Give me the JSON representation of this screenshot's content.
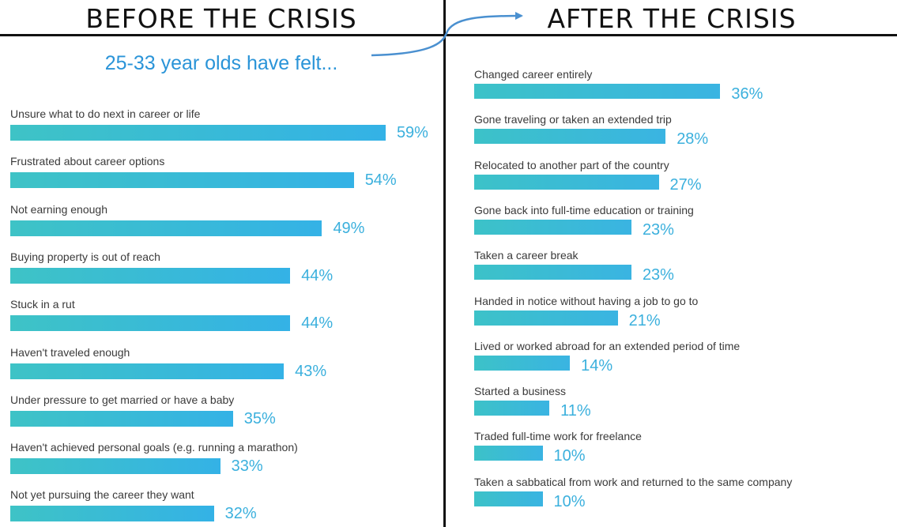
{
  "header": {
    "left_title": "BEFORE THE CRISIS",
    "right_title": "AFTER THE CRISIS"
  },
  "colors": {
    "bar_left_start": "#3ec3c6",
    "bar_left_end": "#34b2e6",
    "bar_right_start": "#3cc2c8",
    "bar_right_end": "#3ab4e2",
    "value_text": "#3bb0dd",
    "arrow": "#4a90d0"
  },
  "chart_data": [
    {
      "type": "bar",
      "orientation": "horizontal",
      "title": "25-33 year olds have felt...",
      "categories": [
        "Unsure what to do next in career or life",
        "Frustrated about career options",
        "Not earning enough",
        "Buying property is out of reach",
        "Stuck in a rut",
        "Haven't traveled enough",
        "Under pressure to get married or have a baby",
        "Haven't achieved personal goals (e.g. running a marathon)",
        "Not yet pursuing the career they want"
      ],
      "values": [
        59,
        54,
        49,
        44,
        44,
        43,
        35,
        33,
        32
      ],
      "value_labels": [
        "59%",
        "54%",
        "49%",
        "44%",
        "44%",
        "43%",
        "35%",
        "33%",
        "32%"
      ],
      "unit": "%",
      "xlim": [
        0,
        100
      ],
      "grid": false,
      "legend": "none"
    },
    {
      "type": "bar",
      "orientation": "horizontal",
      "title": "",
      "categories": [
        "Changed career entirely",
        "Gone traveling or taken an extended trip",
        "Relocated to another part of the country",
        "Gone back into full-time education or training",
        "Taken a career break",
        "Handed in notice without having a job to go to",
        "Lived or worked abroad for an extended period of time",
        "Started a business",
        "Traded full-time work for freelance",
        "Taken a sabbatical from work and returned to the same company"
      ],
      "values": [
        36,
        28,
        27,
        23,
        23,
        21,
        14,
        11,
        10,
        10
      ],
      "value_labels": [
        "36%",
        "28%",
        "27%",
        "23%",
        "23%",
        "21%",
        "14%",
        "11%",
        "10%",
        "10%"
      ],
      "unit": "%",
      "xlim": [
        0,
        100
      ],
      "grid": false,
      "legend": "none"
    }
  ]
}
